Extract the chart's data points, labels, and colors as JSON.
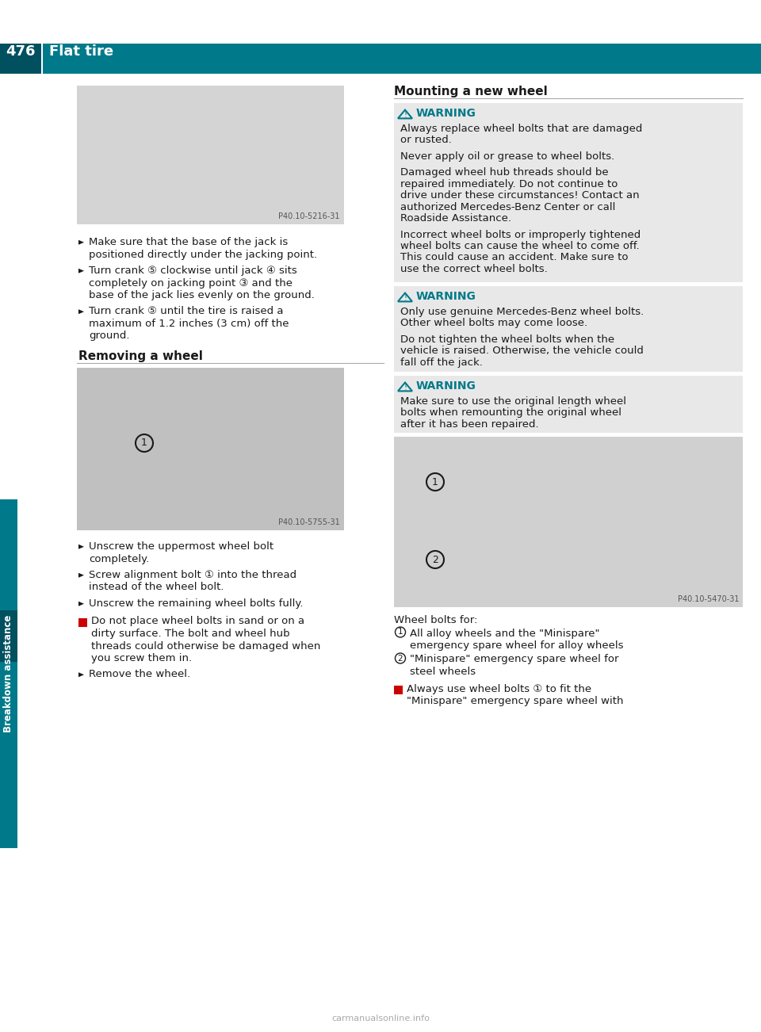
{
  "page_num": "476",
  "header_title": "Flat tire",
  "header_bg": "#007a8a",
  "header_accent": "#005060",
  "page_bg": "#ffffff",
  "sidebar_color": "#007a8a",
  "sidebar_accent": "#005060",
  "sidebar_text": "Breakdown assistance",
  "teal": "#007a8a",
  "warning_bg": "#e8e8e8",
  "warning_title_color": "#007a8a",
  "text_color": "#1a1a1a",
  "img1_caption": "P40.10-5216-31",
  "img1_bg": "#d4d4d4",
  "img2_caption": "P40.10-5755-31",
  "img2_bg": "#c0c0c0",
  "img3_caption": "P40.10-5470-31",
  "img3_bg": "#d0d0d0",
  "section1_title": "Removing a wheel",
  "section2_title": "Mounting a new wheel",
  "bullet1_lines": [
    "Make sure that the base of the jack is",
    "positioned directly under the jacking point."
  ],
  "bullet2_lines": [
    "Turn crank ⑤ clockwise until jack ④ sits",
    "completely on jacking point ③ and the",
    "base of the jack lies evenly on the ground."
  ],
  "bullet3_lines": [
    "Turn crank ⑤ until the tire is raised a",
    "maximum of 1.2 inches (3 cm) off the",
    "ground."
  ],
  "remove_bullet1_lines": [
    "Unscrew the uppermost wheel bolt",
    "completely."
  ],
  "remove_bullet2_lines": [
    "Screw alignment bolt ① into the thread",
    "instead of the wheel bolt."
  ],
  "remove_bullet3_lines": [
    "Unscrew the remaining wheel bolts fully."
  ],
  "remove_bullet4_lines": [
    "Remove the wheel."
  ],
  "notice1_lines": [
    "Do not place wheel bolts in sand or on a",
    "dirty surface. The bolt and wheel hub",
    "threads could otherwise be damaged when",
    "you screw them in."
  ],
  "warning1_title": "WARNING",
  "warning1_lines": [
    "Always replace wheel bolts that are damaged",
    "or rusted.",
    "",
    "Never apply oil or grease to wheel bolts.",
    "",
    "Damaged wheel hub threads should be",
    "repaired immediately. Do not continue to",
    "drive under these circumstances! Contact an",
    "authorized Mercedes-Benz Center or call",
    "Roadside Assistance.",
    "",
    "Incorrect wheel bolts or improperly tightened",
    "wheel bolts can cause the wheel to come off.",
    "This could cause an accident. Make sure to",
    "use the correct wheel bolts."
  ],
  "warning2_title": "WARNING",
  "warning2_lines": [
    "Only use genuine Mercedes-Benz wheel bolts.",
    "Other wheel bolts may come loose.",
    "",
    "Do not tighten the wheel bolts when the",
    "vehicle is raised. Otherwise, the vehicle could",
    "fall off the jack."
  ],
  "warning3_title": "WARNING",
  "warning3_lines": [
    "Make sure to use the original length wheel",
    "bolts when remounting the original wheel",
    "after it has been repaired."
  ],
  "wheel_bolts_for": "Wheel bolts for:",
  "wb_c1_line1": "All alloy wheels and the \"Minispare\"",
  "wb_c1_line2": "emergency spare wheel for alloy wheels",
  "wb_c2_line1": "\"Minispare\" emergency spare wheel for",
  "wb_c2_line2": "steel wheels",
  "notice2_lines": [
    "Always use wheel bolts ① to fit the",
    "\"Minispare\" emergency spare wheel with"
  ],
  "footer_text": "carmanualsonline.info"
}
